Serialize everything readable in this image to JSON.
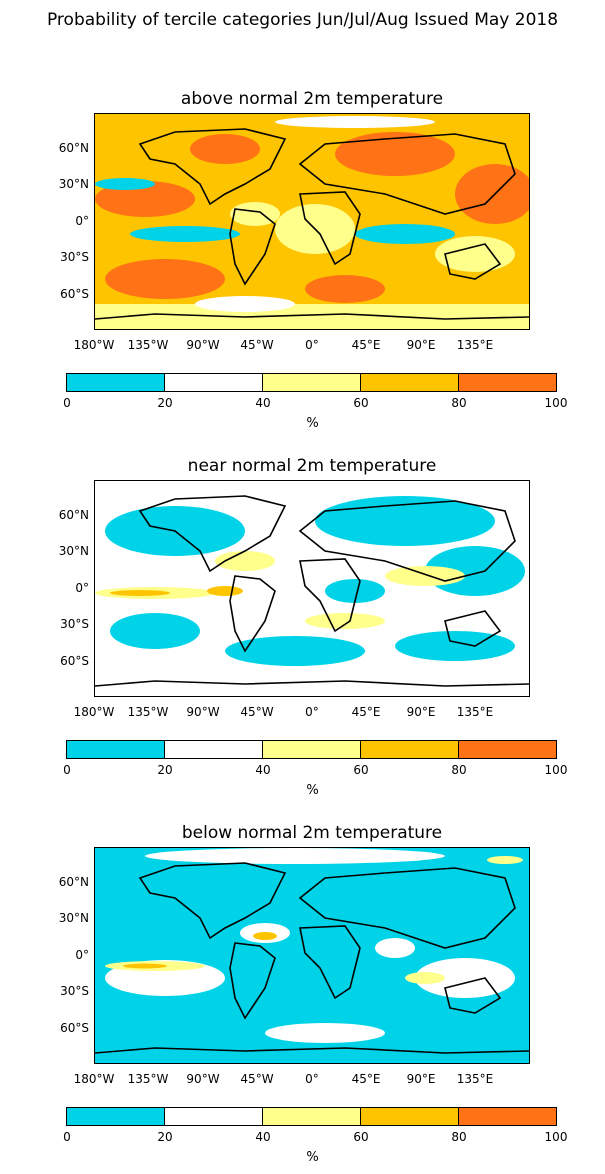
{
  "figure": {
    "title": "Probability of tercile categories Jun/Jul/Aug Issued May 2018"
  },
  "axes": {
    "lat_ticks": [
      "60°N",
      "30°N",
      "0°",
      "30°S",
      "60°S"
    ],
    "lon_ticks": [
      "180°W",
      "135°W",
      "90°W",
      "45°W",
      "0°",
      "45°E",
      "90°E",
      "135°E"
    ]
  },
  "colorbar": {
    "ticks": [
      "0",
      "20",
      "40",
      "60",
      "80",
      "100"
    ],
    "unit": "%",
    "colors": [
      "#00d3e8",
      "#ffffff",
      "#ffff8c",
      "#ffc400",
      "#ff7316"
    ]
  },
  "panels": [
    {
      "title": "above normal 2m temperature",
      "dominant_color": "#ffc400"
    },
    {
      "title": "near normal 2m temperature",
      "dominant_color": "#ffffff"
    },
    {
      "title": "below normal 2m temperature",
      "dominant_color": "#00d3e8"
    }
  ]
}
